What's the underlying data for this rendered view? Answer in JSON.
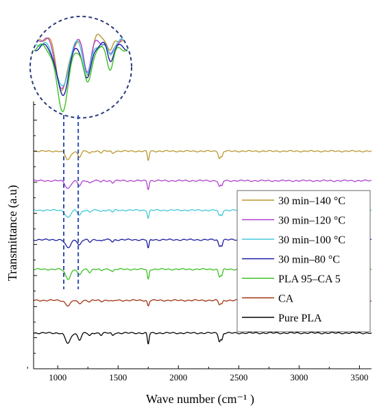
{
  "chart_data": {
    "type": "line",
    "title": "",
    "xlabel": "Wave number (cm⁻¹ )",
    "ylabel": "Transmittance (a.u)",
    "xlim": [
      800,
      3600
    ],
    "x_ticks": [
      1000,
      1500,
      2000,
      2500,
      3000,
      3500
    ],
    "y_ticks_labeled": false,
    "grid": false,
    "legend_position": "bottom-right",
    "inset": "zoomed region around 1050–1180 cm⁻¹ shown in dashed circle at top-left",
    "series": [
      {
        "name": "30 min–140 °C",
        "color": "#b8962e",
        "baseline": 7.0,
        "scale": 1.0
      },
      {
        "name": "30 min–120 °C",
        "color": "#b040d0",
        "baseline": 6.05,
        "scale": 0.9
      },
      {
        "name": "30 min–100 °C",
        "color": "#40c8d8",
        "baseline": 5.1,
        "scale": 0.85
      },
      {
        "name": "30 min–80 °C",
        "color": "#1a1aa0",
        "baseline": 4.15,
        "scale": 0.95
      },
      {
        "name": "PLA 95–CA 5",
        "color": "#3ac020",
        "baseline": 3.2,
        "scale": 1.1
      },
      {
        "name": "CA",
        "color": "#a03010",
        "baseline": 2.2,
        "scale": 0.6
      },
      {
        "name": "Pure PLA",
        "color": "#000000",
        "baseline": 1.15,
        "scale": 1.2
      }
    ],
    "bands": [
      {
        "x": 1085,
        "depth": 0.28,
        "width": 30
      },
      {
        "x": 1180,
        "depth": 0.18,
        "width": 20
      },
      {
        "x": 1265,
        "depth": 0.08,
        "width": 15
      },
      {
        "x": 1360,
        "depth": 0.05,
        "width": 12
      },
      {
        "x": 1455,
        "depth": 0.07,
        "width": 12
      },
      {
        "x": 1750,
        "depth": 0.3,
        "width": 10
      },
      {
        "x": 2340,
        "depth": 0.22,
        "width": 12
      },
      {
        "x": 2360,
        "depth": 0.18,
        "width": 10
      }
    ],
    "marker_lines_x": [
      1050,
      1170
    ]
  }
}
